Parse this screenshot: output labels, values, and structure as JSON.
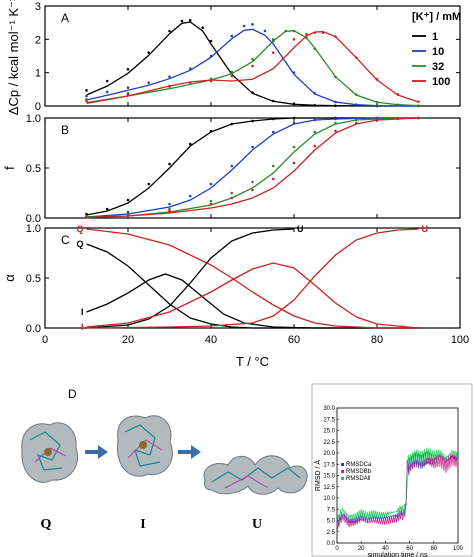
{
  "figure": {
    "panel_d_label": "D",
    "states": {
      "q": "Q",
      "i": "I",
      "u": "U"
    },
    "arrow_color": "#3a6ea5",
    "protein_color": "#9aa3a8"
  },
  "chart_data": [
    {
      "id": "A",
      "type": "line",
      "panel_label": "A",
      "ylabel": "ΔCp / kcal mol⁻¹ K⁻¹",
      "xlim": [
        0,
        100
      ],
      "ylim": [
        0,
        3
      ],
      "yticks": [
        "0",
        "1",
        "2",
        "3"
      ],
      "legend": {
        "title": "[K⁺] / mM",
        "placement": "top-right",
        "entries": [
          {
            "label": "1",
            "color": "#000000"
          },
          {
            "label": "10",
            "color": "#1f3fbf"
          },
          {
            "label": "32",
            "color": "#2a8a2a"
          },
          {
            "label": "100",
            "color": "#cc2222"
          }
        ]
      },
      "series": [
        {
          "name": "1",
          "color": "#000000",
          "x": [
            10,
            15,
            20,
            25,
            30,
            33,
            35,
            38,
            40,
            45,
            50,
            55,
            60,
            65,
            70,
            80,
            90
          ],
          "fit": [
            0.33,
            0.6,
            0.98,
            1.52,
            2.17,
            2.48,
            2.52,
            2.25,
            1.86,
            0.95,
            0.38,
            0.14,
            0.05,
            0.02,
            0.01,
            0.0,
            0.0
          ],
          "points": [
            0.47,
            0.75,
            1.1,
            1.6,
            2.25,
            2.55,
            2.57,
            2.35,
            1.95,
            1.0,
            0.4,
            0.15,
            0.06,
            0.02,
            0.01,
            0.0,
            0.0
          ]
        },
        {
          "name": "10",
          "color": "#1f3fbf",
          "x": [
            10,
            15,
            20,
            25,
            30,
            35,
            40,
            45,
            48,
            50,
            53,
            55,
            60,
            65,
            70,
            75,
            80,
            90
          ],
          "fit": [
            0.18,
            0.32,
            0.47,
            0.62,
            0.82,
            1.07,
            1.46,
            2.02,
            2.27,
            2.3,
            2.12,
            1.86,
            0.95,
            0.36,
            0.12,
            0.04,
            0.01,
            0.0
          ],
          "points": [
            0.3,
            0.42,
            0.55,
            0.7,
            0.88,
            1.12,
            1.5,
            2.1,
            2.4,
            2.45,
            2.25,
            1.95,
            1.0,
            0.38,
            0.12,
            0.04,
            0.01,
            0.0
          ]
        },
        {
          "name": "32",
          "color": "#2a8a2a",
          "x": [
            10,
            20,
            30,
            40,
            45,
            50,
            55,
            58,
            60,
            63,
            65,
            70,
            75,
            80,
            85,
            90
          ],
          "fit": [
            0.1,
            0.3,
            0.52,
            0.78,
            0.97,
            1.33,
            1.95,
            2.24,
            2.26,
            2.05,
            1.74,
            0.88,
            0.33,
            0.11,
            0.04,
            0.01
          ],
          "points": [
            0.2,
            0.38,
            0.58,
            0.82,
            1.02,
            1.4,
            2.0,
            2.25,
            2.25,
            2.05,
            1.72,
            0.87,
            0.34,
            0.11,
            0.04,
            0.01
          ]
        },
        {
          "name": "100",
          "color": "#cc2222",
          "x": [
            10,
            20,
            30,
            35,
            40,
            45,
            50,
            55,
            60,
            63,
            65,
            67,
            70,
            75,
            80,
            85,
            90
          ],
          "fit": [
            0.08,
            0.3,
            0.6,
            0.72,
            0.78,
            0.75,
            0.8,
            1.12,
            1.75,
            2.1,
            2.22,
            2.23,
            2.08,
            1.45,
            0.78,
            0.33,
            0.12
          ],
          "points": [
            0.15,
            0.35,
            0.6,
            0.7,
            0.75,
            0.9,
            1.2,
            1.6,
            2.0,
            2.15,
            2.2,
            2.2,
            2.08,
            1.45,
            0.8,
            0.35,
            0.13
          ]
        }
      ]
    },
    {
      "id": "B",
      "type": "line",
      "panel_label": "B",
      "ylabel": "f",
      "xlim": [
        0,
        100
      ],
      "ylim": [
        0,
        1
      ],
      "yticks": [
        "0.0",
        "0.5",
        "1.0"
      ],
      "series": [
        {
          "name": "1",
          "color": "#000000",
          "x": [
            10,
            15,
            20,
            25,
            30,
            35,
            40,
            45,
            50,
            55,
            60,
            70,
            80,
            90
          ],
          "fit": [
            0.03,
            0.07,
            0.15,
            0.3,
            0.5,
            0.72,
            0.86,
            0.94,
            0.97,
            0.99,
            1.0,
            1.0,
            1.0,
            1.0
          ],
          "points": [
            0.04,
            0.09,
            0.18,
            0.34,
            0.54,
            0.74,
            0.87,
            0.94,
            0.97,
            0.99,
            1.0,
            1.0,
            1.0,
            1.0
          ]
        },
        {
          "name": "10",
          "color": "#1f3fbf",
          "x": [
            10,
            20,
            30,
            35,
            40,
            45,
            50,
            55,
            60,
            65,
            70,
            80,
            90
          ],
          "fit": [
            0.01,
            0.04,
            0.11,
            0.18,
            0.3,
            0.48,
            0.68,
            0.84,
            0.94,
            0.98,
            0.99,
            1.0,
            1.0
          ],
          "points": [
            0.02,
            0.06,
            0.14,
            0.22,
            0.34,
            0.52,
            0.71,
            0.86,
            0.95,
            0.98,
            0.99,
            1.0,
            1.0
          ]
        },
        {
          "name": "32",
          "color": "#2a8a2a",
          "x": [
            10,
            20,
            30,
            40,
            45,
            50,
            55,
            60,
            65,
            70,
            75,
            80,
            90
          ],
          "fit": [
            0.01,
            0.02,
            0.06,
            0.13,
            0.2,
            0.3,
            0.45,
            0.66,
            0.84,
            0.94,
            0.98,
            0.99,
            1.0
          ],
          "points": [
            0.02,
            0.04,
            0.09,
            0.17,
            0.25,
            0.36,
            0.52,
            0.71,
            0.86,
            0.95,
            0.98,
            0.99,
            1.0
          ]
        },
        {
          "name": "100",
          "color": "#cc2222",
          "x": [
            10,
            20,
            30,
            40,
            45,
            50,
            55,
            60,
            65,
            70,
            75,
            80,
            85,
            90
          ],
          "fit": [
            0.005,
            0.02,
            0.05,
            0.1,
            0.14,
            0.2,
            0.3,
            0.47,
            0.68,
            0.85,
            0.94,
            0.98,
            0.99,
            1.0
          ],
          "points": [
            0.01,
            0.03,
            0.07,
            0.14,
            0.2,
            0.28,
            0.39,
            0.55,
            0.72,
            0.87,
            0.95,
            0.98,
            0.99,
            1.0
          ]
        }
      ]
    },
    {
      "id": "C",
      "type": "line",
      "panel_label": "C",
      "xlabel": "T / °C",
      "ylabel": "α",
      "xlim": [
        0,
        100
      ],
      "xticks": [
        "0",
        "20",
        "40",
        "60",
        "80",
        "100"
      ],
      "ylim": [
        0,
        1
      ],
      "yticks": [
        "0.0",
        "0.5",
        "1.0"
      ],
      "series": [
        {
          "name": "Q",
          "color": "#000000",
          "label_side": "start",
          "x": [
            10,
            15,
            20,
            25,
            30,
            35,
            40,
            45,
            50,
            60,
            70,
            90
          ],
          "fit": [
            0.84,
            0.76,
            0.62,
            0.43,
            0.24,
            0.1,
            0.04,
            0.01,
            0.0,
            0.0,
            0.0,
            0.0
          ]
        },
        {
          "name": "I",
          "color": "#000000",
          "label_side": "start",
          "x": [
            10,
            15,
            20,
            25,
            29,
            33,
            38,
            43,
            48,
            55,
            65,
            90
          ],
          "fit": [
            0.16,
            0.24,
            0.35,
            0.48,
            0.54,
            0.48,
            0.31,
            0.14,
            0.05,
            0.01,
            0.0,
            0.0
          ]
        },
        {
          "name": "U",
          "color": "#000000",
          "label_side": "end",
          "x": [
            10,
            20,
            25,
            30,
            35,
            40,
            45,
            50,
            55,
            60
          ],
          "fit": [
            0.0,
            0.03,
            0.09,
            0.22,
            0.45,
            0.7,
            0.87,
            0.95,
            0.98,
            0.99
          ]
        },
        {
          "name": "Q",
          "color": "#cc2222",
          "label_side": "start",
          "x": [
            10,
            20,
            30,
            40,
            45,
            50,
            55,
            60,
            65,
            70,
            80,
            90
          ],
          "fit": [
            0.99,
            0.94,
            0.83,
            0.63,
            0.5,
            0.36,
            0.23,
            0.12,
            0.05,
            0.02,
            0.0,
            0.0
          ]
        },
        {
          "name": "I",
          "color": "#cc2222",
          "label_side": "start",
          "x": [
            10,
            20,
            30,
            40,
            45,
            50,
            55,
            60,
            65,
            70,
            75,
            80,
            90
          ],
          "fit": [
            0.01,
            0.05,
            0.16,
            0.36,
            0.48,
            0.59,
            0.65,
            0.6,
            0.43,
            0.25,
            0.11,
            0.04,
            0.0
          ]
        },
        {
          "name": "U",
          "color": "#cc2222",
          "label_side": "end",
          "x": [
            10,
            30,
            40,
            50,
            55,
            60,
            65,
            70,
            75,
            80,
            85,
            90
          ],
          "fit": [
            0.0,
            0.01,
            0.02,
            0.05,
            0.12,
            0.28,
            0.52,
            0.73,
            0.88,
            0.95,
            0.98,
            0.99
          ]
        }
      ]
    },
    {
      "id": "inset",
      "type": "line",
      "xlabel": "simulation time / ns",
      "ylabel": "RMSD / Å",
      "xlim": [
        0,
        100
      ],
      "xticks": [
        "0",
        "20",
        "40",
        "60",
        "80",
        "100"
      ],
      "ylim": [
        0,
        30
      ],
      "yticks": [
        "0.0",
        "2.5",
        "5.0",
        "7.5",
        "10.0",
        "12.5",
        "15.0",
        "17.5",
        "20.0",
        "22.5",
        "25.0",
        "27.5",
        "30.0"
      ],
      "legend_placement": "middle-left",
      "series": [
        {
          "name": "RMSDCa",
          "color": "#2a3fbf"
        },
        {
          "name": "RMSDBb",
          "color": "#cc2288"
        },
        {
          "name": "RMSDAll",
          "color": "#22cc55"
        }
      ],
      "trace": {
        "x": [
          0,
          2,
          5,
          10,
          15,
          20,
          25,
          30,
          35,
          40,
          45,
          50,
          53,
          55,
          57,
          58,
          60,
          65,
          70,
          75,
          80,
          85,
          90,
          95,
          100
        ],
        "y": [
          3.5,
          5.5,
          6.5,
          5.0,
          5.2,
          6.0,
          5.3,
          5.8,
          5.5,
          5.6,
          6.0,
          6.2,
          7.0,
          6.5,
          8.5,
          17.0,
          17.5,
          18.5,
          18.0,
          19.0,
          18.5,
          19.2,
          18.0,
          19.5,
          18.8
        ]
      }
    }
  ]
}
